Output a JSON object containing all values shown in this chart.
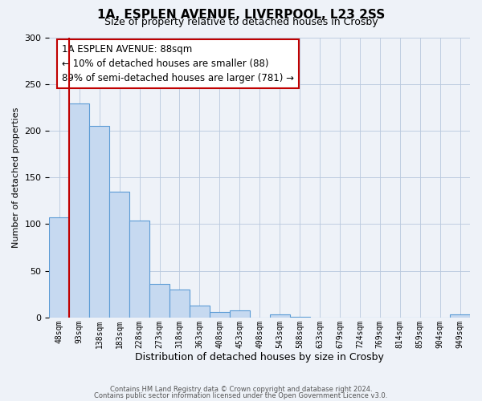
{
  "title": "1A, ESPLEN AVENUE, LIVERPOOL, L23 2SS",
  "subtitle": "Size of property relative to detached houses in Crosby",
  "xlabel": "Distribution of detached houses by size in Crosby",
  "ylabel": "Number of detached properties",
  "bar_labels": [
    "48sqm",
    "93sqm",
    "138sqm",
    "183sqm",
    "228sqm",
    "273sqm",
    "318sqm",
    "363sqm",
    "408sqm",
    "453sqm",
    "498sqm",
    "543sqm",
    "588sqm",
    "633sqm",
    "679sqm",
    "724sqm",
    "769sqm",
    "814sqm",
    "859sqm",
    "904sqm",
    "949sqm"
  ],
  "bar_values": [
    107,
    229,
    205,
    135,
    104,
    36,
    30,
    13,
    6,
    8,
    0,
    3,
    1,
    0,
    0,
    0,
    0,
    0,
    0,
    0,
    3
  ],
  "bar_color": "#c6d9f0",
  "bar_edge_color": "#5b9bd5",
  "property_line_color": "#c00000",
  "annotation_title": "1A ESPLEN AVENUE: 88sqm",
  "annotation_line1": "← 10% of detached houses are smaller (88)",
  "annotation_line2": "89% of semi-detached houses are larger (781) →",
  "annotation_box_color": "#ffffff",
  "annotation_box_edge": "#c00000",
  "ylim": [
    0,
    300
  ],
  "yticks": [
    0,
    50,
    100,
    150,
    200,
    250,
    300
  ],
  "footer1": "Contains HM Land Registry data © Crown copyright and database right 2024.",
  "footer2": "Contains public sector information licensed under the Open Government Licence v3.0.",
  "bg_color": "#eef2f8"
}
